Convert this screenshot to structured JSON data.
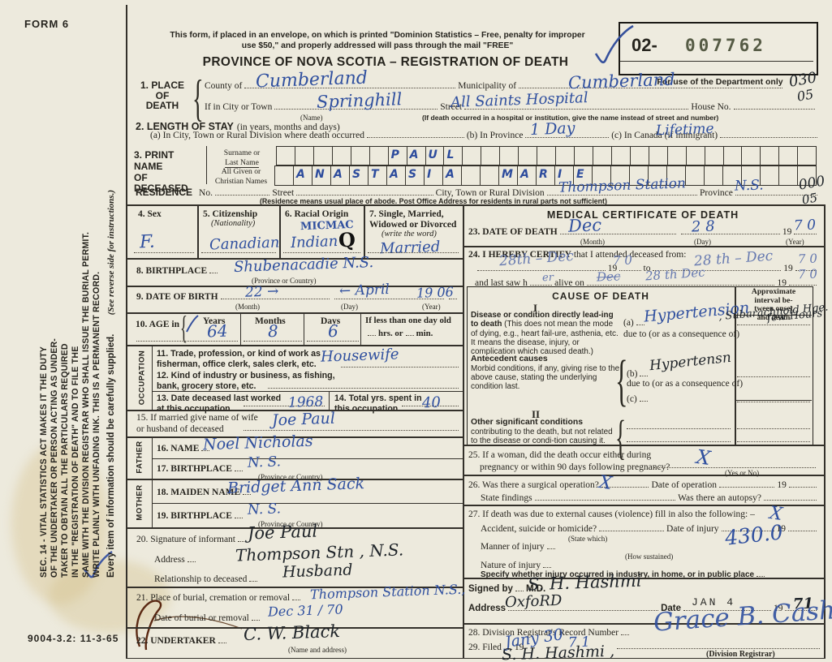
{
  "page": {
    "form_no": "FORM 6",
    "print_code": "9004-3.2: 11-3-65"
  },
  "side_note": {
    "lines": [
      "SEC. 14 - VITAL STATISTICS ACT MAKES IT THE DUTY",
      "OF THE UNDERTAKER OR PERSON ACTING AS UNDER-",
      "TAKER TO OBTAIN ALL THE PARTICULARS REQUIRED",
      "IN THE \"REGISTRATION OF DEATH\" AND TO FILE THE",
      "SAME WITH THE DIVISION REGISTRAR WHO SHALL ISSUE THE BURIAL PERMIT.",
      "WRITE PLAINLY WITH UNFADING INK. THIS IS A PERMANENT RECORD."
    ],
    "every_item": "Every item of information should be carefully supplied.",
    "see_reverse": "(See reverse side for instructions.)"
  },
  "header": {
    "mail_note_line1": "This form, if placed in an envelope, on which is printed \"Dominion Statistics – Free, penalty for improper",
    "mail_note_line2": "use $50,\" and properly addressed will pass through the mail \"FREE\"",
    "title": "PROVINCE OF NOVA SCOTIA – REGISTRATION OF DEATH",
    "serial_prefix": "02-",
    "serial_number": "007762",
    "dept_note": "For use of the Department only"
  },
  "s1": {
    "num1": "1. PLACE",
    "num2": "OF",
    "num3": "DEATH",
    "county_label": "County of",
    "county_value": "Cumberland",
    "municipality_label": "Municipality of",
    "municipality_value": "Cumberland",
    "city_label": "If in City or Town",
    "city_value": "Springhill",
    "name_note": "(Name)",
    "street_label": "Street",
    "street_value": "All Saints Hospital",
    "house_label": "House No.",
    "hospital_note": "(If death occurred in a hospital or institution, give the name instead of street and number)",
    "code_top": "030",
    "code_bottom": "05"
  },
  "s2": {
    "title": "2. LENGTH OF STAY",
    "subtitle": "(in years, months and days)",
    "a_label": "(a) In City, Town or Rural Division where death occurred",
    "a_value": "1 Day",
    "b_label": "(b) In Province",
    "b_value": "Lifetime",
    "c_label": "(c) In Canada (if immigrant)"
  },
  "s3": {
    "title1": "3. PRINT NAME",
    "title2": "OF DECEASED",
    "surname_label1": "Surname or",
    "surname_label2": "Last Name",
    "given_label1": "All Given or",
    "given_label2": "Christian Names",
    "surname_cells": [
      "",
      "",
      "",
      "",
      "",
      "",
      "P",
      "A",
      "U",
      "L",
      "",
      "",
      "",
      "",
      "",
      "",
      "",
      "",
      "",
      "",
      "",
      "",
      "",
      "",
      "",
      "",
      "",
      "",
      ""
    ],
    "given_cells": [
      "",
      "A",
      "N",
      "A",
      "S",
      "T",
      "A",
      "S",
      "I",
      "A",
      "",
      "",
      "M",
      "A",
      "R",
      "I",
      "E",
      "",
      "",
      "",
      "",
      "",
      "",
      "",
      "",
      "",
      "",
      "",
      ""
    ]
  },
  "residence": {
    "label": "RESIDENCE",
    "no_label": "No.",
    "street_label": "Street",
    "city_label": "City, Town or Rural Division",
    "city_value": "Thompson Station",
    "province_label": "Province",
    "province_value": "N.S.",
    "note": "(Residence means usual place of abode. Post Office Address for residents in rural parts not sufficient)",
    "code_top": "000",
    "code_bottom": "05"
  },
  "left": {
    "occupation_label": "OCCUPATION",
    "father_label": "FATHER",
    "mother_label": "MOTHER",
    "s4": {
      "label": "4. Sex",
      "value": "F."
    },
    "s5": {
      "label": "5. Citizenship",
      "sub": "(Nationality)",
      "value": "Canadian"
    },
    "s6": {
      "label": "6. Racial Origin",
      "value_top": "MICMAC",
      "value": "Indian",
      "value_q": "Q"
    },
    "s7": {
      "label1": "7. Single, Married,",
      "label2": "Widowed or Divorced",
      "sub": "(write the word)",
      "value": "Married"
    },
    "s8": {
      "label": "8. BIRTHPLACE",
      "sub": "(Province or Country)",
      "value": "Shubenacadie    N.S."
    },
    "s9": {
      "label": "9. DATE OF BIRTH",
      "month_sub": "(Month)",
      "day_sub": "(Day)",
      "year_sub": "(Year)",
      "month_value": "22 →",
      "day_value": "← April",
      "year_value": "19 06"
    },
    "s10": {
      "label": "10. AGE in",
      "years_label": "Years",
      "months_label": "Months",
      "days_label": "Days",
      "years": "64",
      "months": "8",
      "days": "6",
      "less_label": "If less than one day old",
      "hrs_label": "hrs. or",
      "min_label": "min."
    },
    "s11": {
      "label1": "11. Trade, profession, or kind of work as",
      "label2": "fisherman, office clerk, sales clerk, etc.",
      "value": "Housewife"
    },
    "s12": {
      "label1": "12. Kind of industry or business, as fishing,",
      "label2": "bank, grocery store, etc."
    },
    "s13": {
      "label1": "13. Date deceased last worked",
      "label2": "at this occupation",
      "value": "1968"
    },
    "s14": {
      "label1": "14. Total yrs. spent in",
      "label2": "this occupation",
      "value": "40"
    },
    "s15": {
      "label1": "15. If married give name of wife",
      "label2": "or husband of deceased",
      "value": "Joe  Paul"
    },
    "s16": {
      "label": "16. NAME",
      "value": "Noel    Nicholas"
    },
    "s17": {
      "label": "17. BIRTHPLACE",
      "sub": "(Province or Country)",
      "value": "N. S."
    },
    "s18": {
      "label": "18. MAIDEN NAME",
      "value": "Bridget  Ann  Sack"
    },
    "s19": {
      "label": "19. BIRTHPLACE",
      "sub": "(Province or Country)",
      "value": "N. S."
    },
    "s20": {
      "label": "20. Signature of informant",
      "value": "Joe  Paul",
      "addr_label": "Address",
      "addr_value": "Thompson  Stn ,  N.S.",
      "rel_label": "Relationship to deceased",
      "rel_value": "Husband"
    },
    "s21": {
      "label": "21. Place of burial, cremation or removal",
      "value": "Thompson  Station  N.S.,",
      "date_label": "Date of burial or removal",
      "date_value": "Dec  31 / 70"
    },
    "s22": {
      "label": "22. UNDERTAKER",
      "sub": "(Name and address)",
      "value": "C. W.  Black"
    }
  },
  "medical": {
    "title": "MEDICAL CERTIFICATE OF DEATH",
    "s23": {
      "label": "23. DATE OF DEATH",
      "month": "Dec",
      "day": "2 8",
      "year": "7 0",
      "year_pre": "19",
      "month_sub": "(Month)",
      "day_sub": "(Day)",
      "year_sub": "(Year)"
    },
    "s24": {
      "label_pre": "24.",
      "label_bold": "I HEREBY CERTIFY",
      "label_rest": "that I attended deceased from:",
      "from_value": "28th –  Dec",
      "year1": "7 0",
      "to_label": "to",
      "to_value": "28 th – Dec",
      "year2": "7 0",
      "last_label1": "and last saw h",
      "last_fill": "er",
      "last_label2": "alive on",
      "struck_value": "Dec",
      "last_value": "28 th   Dec",
      "year3": "7 0",
      "year_pre": "19"
    },
    "cause": {
      "title": "CAUSE OF DEATH",
      "interval1": "Approximate",
      "interval2": "interval be-",
      "interval3": "tween onset",
      "interval4": "and death",
      "roman1": "I",
      "roman2": "II",
      "disease_bold": "Disease or condition directly lead-ing to death",
      "disease_rest": "(This does not mean the mode of dying, e.g., heart fail-ure, asthenia, etc. It means the disease, injury, or complication which caused death.)",
      "a_label": "(a)",
      "a_value_blue": "Hypertension",
      "a_value_dark": ", Subarachnoid Hge. .",
      "a_interval": "few Hours",
      "due_label": "due to (or as a consequence of)",
      "antecedent_bold": "Antecedent causes",
      "antecedent_rest": "Morbid conditions, if any, giving rise to the above cause, stating the underlying condition last.",
      "b_label": "(b)",
      "b_value": "Hypertensn",
      "c_label": "(c)",
      "other_bold": "Other significant conditions",
      "other_rest": "contributing to the death, but not related to the disease or condi-tion causing it."
    },
    "s25": {
      "label1": "25. If a woman, did the death occur either during",
      "label2": "pregnancy or within 90 days following pregnancy?",
      "mark": "X",
      "sub": "(Yes or No)"
    },
    "s26": {
      "label": "26. Was there a surgical operation?",
      "mark": "X",
      "date_label": "Date of operation",
      "year_pre": "19",
      "findings_label": "State findings",
      "autopsy_label": "Was there an autopsy?"
    },
    "s27": {
      "label": "27. If death was due to external causes (violence) fill in also the following: –",
      "mark": "X",
      "accident_label": "Accident, suicide or homicide?",
      "statewhich_sub": "(State which)",
      "injurydate_label": "Date of injury",
      "year_pre": "19",
      "manner_label": "Manner of injury",
      "code_value": "430.0",
      "how_sub": "(How sustained)",
      "nature_label": "Nature of injury",
      "specify_label": "Specify whether injury occurred in industry, in home, or in public place"
    },
    "signed": {
      "label": "Signed by",
      "value": "S. H. Hashmi",
      "md": "M.D.",
      "addr_label": "Address",
      "addr_value": "OxfoRD",
      "date_label": "Date",
      "date_stamp": "JAN 4",
      "year_pre": "19",
      "year": "71"
    },
    "s28": {
      "label": "28. Division Registrar's Record Number"
    },
    "s29": {
      "label": "29. Filed",
      "filed_value": "Jany 30",
      "year_pre": "19",
      "year": "7 1",
      "registrar_sub": "(Division Registrar)",
      "registrar_sig": "Grace B. Cash",
      "md_sig": "S. H. Hashmi ,"
    }
  }
}
